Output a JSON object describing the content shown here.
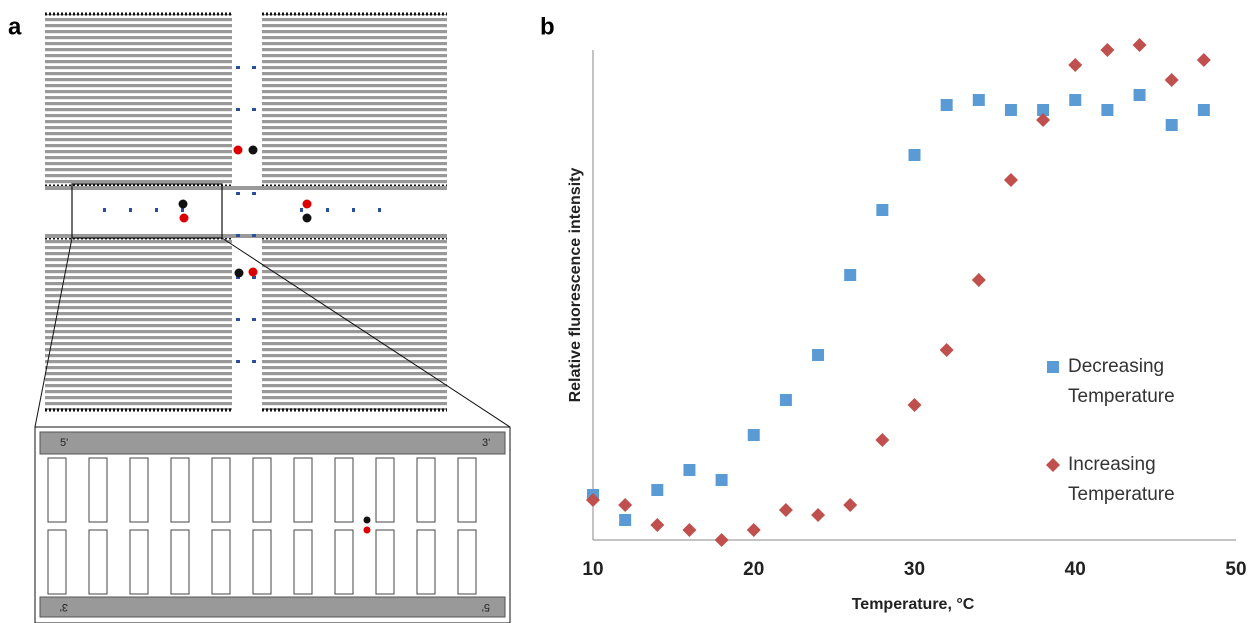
{
  "panel_labels": [
    "a",
    "b"
  ],
  "diagram": {
    "end_labels": [
      "5'",
      "3'",
      "3'",
      "5'"
    ]
  },
  "chart_data": {
    "type": "scatter",
    "xlabel": "Temperature, °C",
    "ylabel": "Relative fluorescence intensity",
    "xlim": [
      10,
      50
    ],
    "xticks": [
      10,
      20,
      30,
      40,
      50
    ],
    "ylim": [
      0,
      1
    ],
    "x": [
      10,
      12,
      14,
      16,
      18,
      20,
      22,
      24,
      26,
      28,
      30,
      32,
      34,
      36,
      38,
      40,
      42,
      44,
      46,
      48
    ],
    "series": [
      {
        "name": "Decreasing Temperature",
        "color": "#5b9bd5",
        "marker": "square",
        "values": [
          0.09,
          0.04,
          0.1,
          0.14,
          0.12,
          0.21,
          0.28,
          0.37,
          0.53,
          0.66,
          0.77,
          0.87,
          0.88,
          0.86,
          0.86,
          0.88,
          0.86,
          0.89,
          0.83,
          0.86
        ]
      },
      {
        "name": "Increasing Temperature",
        "color": "#c0504d",
        "marker": "diamond",
        "values": [
          0.08,
          0.07,
          0.03,
          0.02,
          0.0,
          0.02,
          0.06,
          0.05,
          0.07,
          0.2,
          0.27,
          0.38,
          0.52,
          0.72,
          0.84,
          0.95,
          0.98,
          0.99,
          0.92,
          0.96
        ]
      }
    ]
  }
}
